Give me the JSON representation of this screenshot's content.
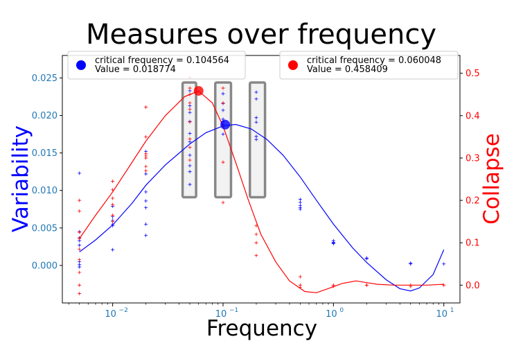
{
  "chart_data": {
    "type": "scatter",
    "title": "Measures over frequency",
    "xlabel": "Frequency",
    "xscale": "log",
    "xlim": [
      0.0035,
      14
    ],
    "x_ticks": [
      0.01,
      0.1,
      1,
      10
    ],
    "x_tick_labels": [
      {
        "base": "10",
        "exp": "−2"
      },
      {
        "base": "10",
        "exp": "−1"
      },
      {
        "base": "10",
        "exp": "0"
      },
      {
        "base": "10",
        "exp": "1"
      }
    ],
    "y_left": {
      "label": "Variability",
      "color": "#0000ff",
      "tick_color": "#1f77b4",
      "lim": [
        -0.005,
        0.028
      ],
      "ticks": [
        "0.000",
        "0.005",
        "0.010",
        "0.015",
        "0.020",
        "0.025"
      ]
    },
    "y_right": {
      "label": "Collapse",
      "color": "#ff0000",
      "lim": [
        -0.042,
        0.542
      ],
      "ticks": [
        "0.0",
        "0.1",
        "0.2",
        "0.3",
        "0.4",
        "0.5"
      ]
    },
    "grid": false,
    "legend_left": {
      "position": "upper-left",
      "color": "#0000ff",
      "line1": "critical frequency = 0.104564",
      "line2": "Value = 0.018774"
    },
    "legend_right": {
      "position": "upper-right",
      "color": "#ff0000",
      "line1": "critical frequency = 0.060048",
      "line2": "Value = 0.458409"
    },
    "critical_points": [
      {
        "axis": "left",
        "x": 0.104564,
        "y": 0.018774,
        "color": "#0000ff"
      },
      {
        "axis": "right",
        "x": 0.060048,
        "y": 0.458409,
        "color": "#ff0000"
      }
    ],
    "highlight_boxes": [
      {
        "x_from": 0.043,
        "x_to": 0.057,
        "y_from": 0.0091,
        "y_to": 0.0244
      },
      {
        "x_from": 0.085,
        "x_to": 0.118,
        "y_from": 0.0091,
        "y_to": 0.0244
      },
      {
        "x_from": 0.175,
        "x_to": 0.24,
        "y_from": 0.0091,
        "y_to": 0.0244
      }
    ],
    "series": [
      {
        "axis": "left",
        "color": "#0000ff",
        "kind": "points",
        "points": [
          [
            0.005,
            0.0123
          ],
          [
            0.005,
            0.0045
          ],
          [
            0.005,
            0.0037
          ],
          [
            0.005,
            0.0033
          ],
          [
            0.005,
            0.0027
          ],
          [
            0.005,
            0.0005
          ],
          [
            0.005,
            0.0001
          ],
          [
            0.005,
            -0.0002
          ],
          [
            0.01,
            0.0079
          ],
          [
            0.01,
            0.0065
          ],
          [
            0.01,
            0.006
          ],
          [
            0.01,
            0.0055
          ],
          [
            0.01,
            0.0053
          ],
          [
            0.01,
            0.0021
          ],
          [
            0.02,
            0.0152
          ],
          [
            0.02,
            0.0122
          ],
          [
            0.02,
            0.0098
          ],
          [
            0.02,
            0.0086
          ],
          [
            0.02,
            0.0077
          ],
          [
            0.02,
            0.0055
          ],
          [
            0.02,
            0.004
          ],
          [
            0.05,
            0.0233
          ],
          [
            0.05,
            0.0213
          ],
          [
            0.05,
            0.0204
          ],
          [
            0.05,
            0.0192
          ],
          [
            0.05,
            0.0176
          ],
          [
            0.05,
            0.0165
          ],
          [
            0.05,
            0.0147
          ],
          [
            0.05,
            0.0133
          ],
          [
            0.05,
            0.0125
          ],
          [
            0.05,
            0.0108
          ],
          [
            0.1,
            0.0229
          ],
          [
            0.1,
            0.0216
          ],
          [
            0.1,
            0.0207
          ],
          [
            0.1,
            0.0195
          ],
          [
            0.1,
            0.0192
          ],
          [
            0.1,
            0.0188
          ],
          [
            0.1,
            0.0175
          ],
          [
            0.2,
            0.0231
          ],
          [
            0.2,
            0.0222
          ],
          [
            0.2,
            0.0197
          ],
          [
            0.2,
            0.0191
          ],
          [
            0.2,
            0.0172
          ],
          [
            0.2,
            0.0168
          ],
          [
            0.5,
            0.0088
          ],
          [
            0.5,
            0.0084
          ],
          [
            0.5,
            0.008
          ],
          [
            0.5,
            0.0077
          ],
          [
            0.5,
            0.0075
          ],
          [
            1,
            0.0033
          ],
          [
            1,
            0.0031
          ],
          [
            1,
            0.003
          ],
          [
            1,
            0.0029
          ],
          [
            2,
            0.001
          ],
          [
            2,
            0.0009
          ],
          [
            5,
            0.0003
          ],
          [
            5,
            0.0002
          ],
          [
            10,
            0.0002
          ]
        ]
      },
      {
        "axis": "left",
        "color": "#0000ff",
        "kind": "curve",
        "points": [
          [
            0.005,
            0.0018
          ],
          [
            0.007,
            0.0034
          ],
          [
            0.01,
            0.0054
          ],
          [
            0.015,
            0.0083
          ],
          [
            0.02,
            0.0107
          ],
          [
            0.03,
            0.0134
          ],
          [
            0.05,
            0.0162
          ],
          [
            0.07,
            0.0177
          ],
          [
            0.1,
            0.0186
          ],
          [
            0.13,
            0.0188
          ],
          [
            0.18,
            0.0182
          ],
          [
            0.25,
            0.0168
          ],
          [
            0.35,
            0.0147
          ],
          [
            0.5,
            0.0118
          ],
          [
            0.7,
            0.0087
          ],
          [
            1,
            0.0055
          ],
          [
            1.5,
            0.0023
          ],
          [
            2,
            0.0004
          ],
          [
            3,
            -0.0019
          ],
          [
            4,
            -0.0031
          ],
          [
            5,
            -0.0034
          ],
          [
            6,
            -0.003
          ],
          [
            8,
            -0.0012
          ],
          [
            10,
            0.0021
          ]
        ]
      },
      {
        "axis": "right",
        "color": "#ff0000",
        "kind": "points",
        "points": [
          [
            0.005,
            0.2
          ],
          [
            0.005,
            0.175
          ],
          [
            0.005,
            0.125
          ],
          [
            0.005,
            0.11
          ],
          [
            0.005,
            0.085
          ],
          [
            0.005,
            0.06
          ],
          [
            0.005,
            0.03
          ],
          [
            0.005,
            0.0
          ],
          [
            0.005,
            -0.02
          ],
          [
            0.01,
            0.245
          ],
          [
            0.01,
            0.225
          ],
          [
            0.01,
            0.205
          ],
          [
            0.01,
            0.19
          ],
          [
            0.01,
            0.165
          ],
          [
            0.01,
            0.15
          ],
          [
            0.02,
            0.42
          ],
          [
            0.02,
            0.35
          ],
          [
            0.02,
            0.31
          ],
          [
            0.02,
            0.305
          ],
          [
            0.02,
            0.3
          ],
          [
            0.02,
            0.28
          ],
          [
            0.02,
            0.27
          ],
          [
            0.05,
            0.49
          ],
          [
            0.05,
            0.465
          ],
          [
            0.05,
            0.45
          ],
          [
            0.05,
            0.43
          ],
          [
            0.05,
            0.415
          ],
          [
            0.05,
            0.385
          ],
          [
            0.05,
            0.345
          ],
          [
            0.05,
            0.325
          ],
          [
            0.05,
            0.295
          ],
          [
            0.1,
            0.465
          ],
          [
            0.1,
            0.43
          ],
          [
            0.1,
            0.375
          ],
          [
            0.1,
            0.29
          ],
          [
            0.1,
            0.195
          ],
          [
            0.2,
            0.14
          ],
          [
            0.2,
            0.12
          ],
          [
            0.2,
            0.1
          ],
          [
            0.2,
            0.07
          ],
          [
            0.5,
            0.02
          ],
          [
            0.5,
            0.0
          ],
          [
            0.5,
            -0.005
          ],
          [
            1,
            0.0
          ],
          [
            1,
            -0.003
          ],
          [
            2,
            0.0
          ],
          [
            2,
            0.0
          ],
          [
            5,
            0.0
          ],
          [
            5,
            -0.003
          ],
          [
            10,
            0.0
          ]
        ]
      },
      {
        "axis": "right",
        "color": "#ff0000",
        "kind": "curve",
        "points": [
          [
            0.005,
            0.11
          ],
          [
            0.007,
            0.165
          ],
          [
            0.01,
            0.22
          ],
          [
            0.015,
            0.29
          ],
          [
            0.02,
            0.34
          ],
          [
            0.03,
            0.4
          ],
          [
            0.045,
            0.445
          ],
          [
            0.06,
            0.458
          ],
          [
            0.08,
            0.43
          ],
          [
            0.1,
            0.375
          ],
          [
            0.13,
            0.29
          ],
          [
            0.17,
            0.2
          ],
          [
            0.22,
            0.12
          ],
          [
            0.3,
            0.055
          ],
          [
            0.4,
            0.01
          ],
          [
            0.55,
            -0.015
          ],
          [
            0.7,
            -0.018
          ],
          [
            0.9,
            -0.008
          ],
          [
            1.2,
            0.004
          ],
          [
            1.6,
            0.01
          ],
          [
            2,
            0.006
          ],
          [
            2.5,
            0.002
          ],
          [
            3.5,
            0.0
          ],
          [
            5,
            0.0
          ],
          [
            7,
            0.0
          ],
          [
            10,
            0.002
          ]
        ]
      }
    ]
  }
}
